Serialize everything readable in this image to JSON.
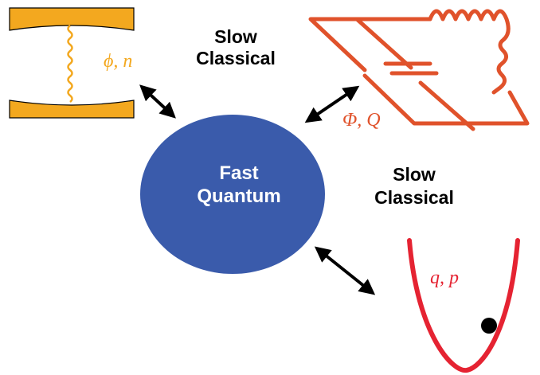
{
  "center": {
    "line1": "Fast",
    "line2": "Quantum",
    "fill": "#3a5bab",
    "text_color": "#ffffff"
  },
  "slow_labels": [
    {
      "line1": "Slow",
      "line2": "Classical"
    },
    {
      "line1": "Slow",
      "line2": "Classical"
    }
  ],
  "subsystems": {
    "cavity": {
      "label": "ϕ, n",
      "color": "#f3a81f",
      "icon": "optical-cavity-icon"
    },
    "circuit": {
      "label": "Φ, Q",
      "color": "#e0522b",
      "icon": "lc-circuit-icon"
    },
    "oscillator": {
      "label": "q, p",
      "color": "#e52332",
      "icon": "harmonic-potential-icon"
    }
  },
  "arrow_color": "#000000"
}
